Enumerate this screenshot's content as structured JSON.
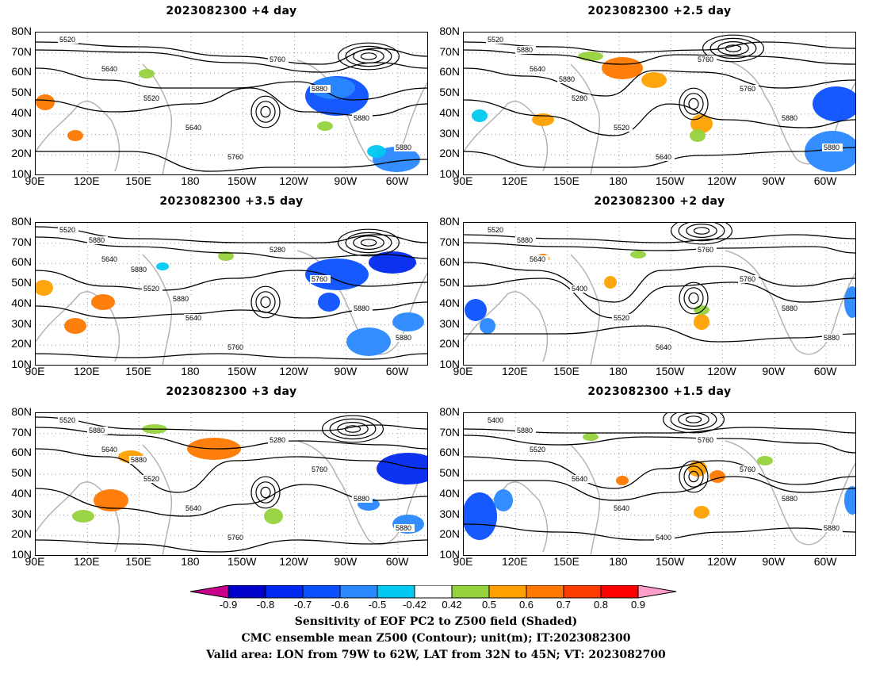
{
  "panels": [
    {
      "title": "2023082300  +4 day",
      "contours": [
        "5520",
        "5640",
        "5520",
        "5640",
        "5760",
        "5760",
        "5880",
        "5880",
        "5880"
      ]
    },
    {
      "title": "2023082300  +2.5 day",
      "contours": [
        "5520",
        "5640",
        "5280",
        "5520",
        "5640",
        "5760",
        "5760",
        "5880",
        "5880",
        "5880",
        "5880"
      ]
    },
    {
      "title": "2023082300  +3.5 day",
      "contours": [
        "5520",
        "5640",
        "5520",
        "5640",
        "5760",
        "5280",
        "5760",
        "5880",
        "5880",
        "5880",
        "5880",
        "5880"
      ]
    },
    {
      "title": "2023082300  +2 day",
      "contours": [
        "5520",
        "5640",
        "5400",
        "5520",
        "5640",
        "5760",
        "5760",
        "5880",
        "5880",
        "5880"
      ]
    },
    {
      "title": "2023082300  +3 day",
      "contours": [
        "5520",
        "5640",
        "5520",
        "5640",
        "5760",
        "5280",
        "5760",
        "5880",
        "5880",
        "5880",
        "5880"
      ]
    },
    {
      "title": "2023082300  +1.5 day",
      "contours": [
        "5400",
        "5520",
        "5640",
        "5640",
        "5400",
        "5760",
        "5760",
        "5880",
        "5880",
        "5880"
      ]
    }
  ],
  "lat_ticks": [
    "80N",
    "70N",
    "60N",
    "50N",
    "40N",
    "30N",
    "20N",
    "10N"
  ],
  "lon_ticks": [
    "90E",
    "120E",
    "150E",
    "180",
    "150W",
    "120W",
    "90W",
    "60W"
  ],
  "colorbar": {
    "labels": [
      "-0.9",
      "-0.8",
      "-0.7",
      "-0.6",
      "-0.5",
      "-0.42",
      "0.42",
      "0.5",
      "0.6",
      "0.7",
      "0.8",
      "0.9"
    ],
    "colors": [
      "#c8008c",
      "#0000c8",
      "#0028f0",
      "#0a50ff",
      "#2a88ff",
      "#00c8f0",
      "#ffffff",
      "#96d23c",
      "#ffa000",
      "#ff7800",
      "#ff3c00",
      "#ff0000",
      "#ff9ec8"
    ]
  },
  "caption": {
    "line1": "Sensitivity of EOF PC2 to Z500 field (Shaded)",
    "line2": "CMC ensemble mean Z500 (Contour); unit(m); IT:2023082300",
    "line3": "Valid area: LON from 79W to 62W, LAT from 32N to 45N; VT: 2023082700"
  }
}
